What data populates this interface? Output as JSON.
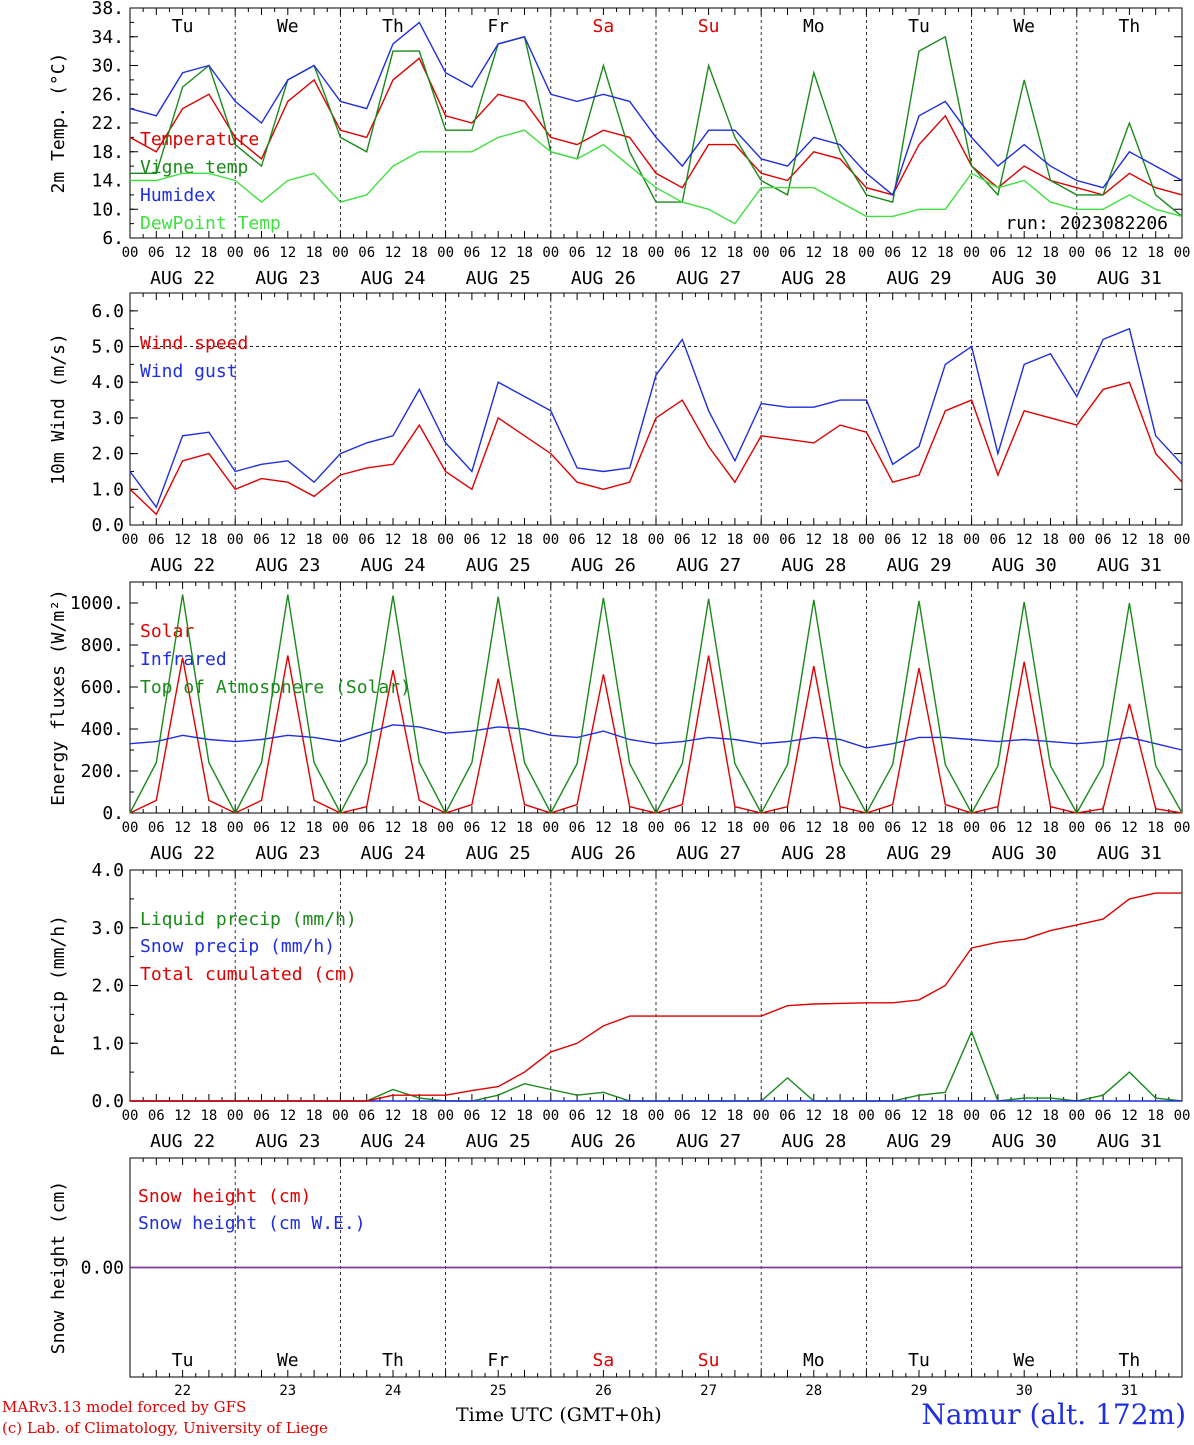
{
  "meta": {
    "run": "run: 2023082206",
    "model_line1": "MARv3.13 model forced by GFS",
    "model_line2": "(c) Lab. of Climatology, University of Liege",
    "time_axis": "Time UTC (GMT+0h)",
    "location": "Namur (alt. 172m)"
  },
  "days": {
    "weekday": [
      "Tu",
      "We",
      "Th",
      "Fr",
      "Sa",
      "Su",
      "Mo",
      "Tu",
      "We",
      "Th"
    ],
    "weekend_flags": [
      false,
      false,
      false,
      false,
      true,
      true,
      false,
      false,
      false,
      false
    ],
    "dates": [
      "AUG 22",
      "AUG 23",
      "AUG 24",
      "AUG 25",
      "AUG 26",
      "AUG 27",
      "AUG 28",
      "AUG 29",
      "AUG 30",
      "AUG 31"
    ],
    "day_numbers": [
      "22",
      "23",
      "24",
      "25",
      "26",
      "27",
      "28",
      "29",
      "30",
      "31"
    ],
    "hour_ticks": [
      "00",
      "06",
      "12",
      "18"
    ],
    "end_tick": "00"
  },
  "colors": {
    "red": "#e00000",
    "green": "#1a8a1a",
    "blue": "#1f2ee0",
    "lime": "#40e040",
    "purple": "#7a3aa0",
    "weekend": "#e00000"
  },
  "chart_data": [
    {
      "type": "line",
      "ylabel": "2m Temp. (°C)",
      "ylim": [
        6,
        38
      ],
      "yticks": [
        "38.",
        "34.",
        "30.",
        "26.",
        "22.",
        "18.",
        "14.",
        "10.",
        "6."
      ],
      "yvals": [
        38,
        34,
        30,
        26,
        22,
        18,
        14,
        10,
        6
      ],
      "x_hours_step": 6,
      "series": [
        {
          "name": "Temperature",
          "color": "red",
          "values": [
            20,
            18,
            24,
            26,
            20,
            17,
            25,
            28,
            21,
            20,
            28,
            31,
            23,
            22,
            26,
            25,
            20,
            19,
            21,
            20,
            15,
            13,
            19,
            19,
            15,
            14,
            18,
            17,
            13,
            12,
            19,
            23,
            16,
            13,
            16,
            14,
            13,
            12,
            15,
            13,
            12
          ]
        },
        {
          "name": "Vigne temp",
          "color": "green",
          "values": [
            15,
            15,
            27,
            30,
            19,
            16,
            28,
            30,
            20,
            18,
            32,
            32,
            21,
            21,
            33,
            34,
            18,
            17,
            30,
            18,
            11,
            11,
            30,
            20,
            14,
            12,
            29,
            18,
            12,
            11,
            32,
            34,
            16,
            12,
            28,
            14,
            12,
            12,
            22,
            12,
            9
          ]
        },
        {
          "name": "Humidex",
          "color": "blue",
          "values": [
            24,
            23,
            29,
            30,
            25,
            22,
            28,
            30,
            25,
            24,
            33,
            36,
            29,
            27,
            33,
            34,
            26,
            25,
            26,
            25,
            20,
            16,
            21,
            21,
            17,
            16,
            20,
            19,
            15,
            12,
            23,
            25,
            20,
            16,
            19,
            16,
            14,
            13,
            18,
            16,
            14
          ]
        },
        {
          "name": "DewPoint Temp",
          "color": "lime",
          "values": [
            14,
            14,
            15,
            15,
            14,
            11,
            14,
            15,
            11,
            12,
            16,
            18,
            18,
            18,
            20,
            21,
            18,
            17,
            19,
            16,
            13,
            11,
            10,
            8,
            13,
            13,
            13,
            11,
            9,
            9,
            10,
            10,
            15,
            13,
            14,
            11,
            10,
            10,
            12,
            10,
            9
          ]
        }
      ]
    },
    {
      "type": "line",
      "ylabel": "10m Wind (m/s)",
      "ylim": [
        0,
        6.5
      ],
      "yticks": [
        "6.0",
        "5.0",
        "4.0",
        "3.0",
        "2.0",
        "1.0",
        "0.0"
      ],
      "yvals": [
        6,
        5,
        4,
        3,
        2,
        1,
        0
      ],
      "ref_line": 5,
      "x_hours_step": 6,
      "series": [
        {
          "name": "Wind speed",
          "color": "red",
          "values": [
            1.0,
            0.3,
            1.8,
            2.0,
            1.0,
            1.3,
            1.2,
            0.8,
            1.4,
            1.6,
            1.7,
            2.8,
            1.5,
            1.0,
            3.0,
            2.5,
            2.0,
            1.2,
            1.0,
            1.2,
            3.0,
            3.5,
            2.2,
            1.2,
            2.5,
            2.4,
            2.3,
            2.8,
            2.6,
            1.2,
            1.4,
            3.2,
            3.5,
            1.4,
            3.2,
            3.0,
            2.8,
            3.8,
            4.0,
            2.0,
            1.2
          ]
        },
        {
          "name": "Wind gust",
          "color": "blue",
          "values": [
            1.5,
            0.5,
            2.5,
            2.6,
            1.5,
            1.7,
            1.8,
            1.2,
            2.0,
            2.3,
            2.5,
            3.8,
            2.3,
            1.5,
            4.0,
            3.6,
            3.2,
            1.6,
            1.5,
            1.6,
            4.2,
            5.2,
            3.2,
            1.8,
            3.4,
            3.3,
            3.3,
            3.5,
            3.5,
            1.7,
            2.2,
            4.5,
            5.0,
            2.0,
            4.5,
            4.8,
            3.6,
            5.2,
            5.5,
            2.5,
            1.7
          ]
        }
      ]
    },
    {
      "type": "line",
      "ylabel": "Energy fluxes (W/m²)",
      "ylim": [
        0,
        1100
      ],
      "yticks": [
        "1000.",
        "800.",
        "600.",
        "400.",
        "200.",
        "0."
      ],
      "yvals": [
        1000,
        800,
        600,
        400,
        200,
        0
      ],
      "x_hours_step": 6,
      "series": [
        {
          "name": "Solar",
          "color": "red",
          "values": [
            0,
            60,
            740,
            60,
            0,
            60,
            750,
            60,
            0,
            30,
            680,
            60,
            0,
            40,
            640,
            40,
            0,
            40,
            660,
            30,
            0,
            40,
            750,
            30,
            0,
            30,
            700,
            30,
            0,
            40,
            690,
            40,
            0,
            30,
            720,
            30,
            0,
            20,
            520,
            20,
            0
          ]
        },
        {
          "name": "Infrared",
          "color": "blue",
          "values": [
            330,
            340,
            370,
            350,
            340,
            350,
            370,
            360,
            340,
            380,
            420,
            410,
            380,
            390,
            410,
            400,
            370,
            360,
            390,
            350,
            330,
            340,
            360,
            350,
            330,
            340,
            360,
            350,
            310,
            330,
            360,
            360,
            350,
            340,
            350,
            340,
            330,
            340,
            360,
            330,
            300
          ]
        },
        {
          "name": "Top of Atmosphere (Solar)",
          "color": "green",
          "values": [
            0,
            240,
            1040,
            240,
            0,
            240,
            1040,
            240,
            0,
            240,
            1035,
            240,
            0,
            240,
            1030,
            240,
            0,
            235,
            1025,
            235,
            0,
            235,
            1020,
            235,
            0,
            230,
            1015,
            230,
            0,
            230,
            1010,
            230,
            0,
            225,
            1005,
            225,
            0,
            225,
            1000,
            225,
            0
          ]
        }
      ]
    },
    {
      "type": "line",
      "ylabel": "Precip (mm/h)",
      "ylim": [
        0,
        4.0
      ],
      "yticks": [
        "4.0",
        "3.0",
        "2.0",
        "1.0",
        "0.0"
      ],
      "yvals": [
        4,
        3,
        2,
        1,
        0
      ],
      "x_hours_step": 6,
      "series": [
        {
          "name": "Liquid precip (mm/h)",
          "color": "green",
          "values": [
            0,
            0,
            0,
            0,
            0,
            0,
            0,
            0,
            0,
            0,
            0.2,
            0.05,
            0,
            0,
            0.1,
            0.3,
            0.2,
            0.1,
            0.15,
            0,
            0,
            0,
            0,
            0,
            0,
            0.4,
            0,
            0,
            0,
            0,
            0.1,
            0.15,
            1.2,
            0,
            0.05,
            0.05,
            0,
            0.1,
            0.5,
            0.05,
            0
          ]
        },
        {
          "name": "Snow precip (mm/h)",
          "color": "blue",
          "values": [
            0,
            0,
            0,
            0,
            0,
            0,
            0,
            0,
            0,
            0,
            0,
            0,
            0,
            0,
            0,
            0,
            0,
            0,
            0,
            0,
            0,
            0,
            0,
            0,
            0,
            0,
            0,
            0,
            0,
            0,
            0,
            0,
            0,
            0,
            0,
            0,
            0,
            0,
            0,
            0,
            0
          ]
        },
        {
          "name": "Total cumulated (cm)",
          "color": "red",
          "values": [
            0,
            0,
            0,
            0,
            0,
            0,
            0,
            0,
            0,
            0,
            0.1,
            0.1,
            0.1,
            0.18,
            0.25,
            0.5,
            0.85,
            1.0,
            1.3,
            1.47,
            1.47,
            1.47,
            1.47,
            1.47,
            1.47,
            1.65,
            1.68,
            1.69,
            1.7,
            1.7,
            1.75,
            2.0,
            2.65,
            2.75,
            2.8,
            2.95,
            3.05,
            3.15,
            3.5,
            3.6,
            3.6
          ]
        }
      ]
    },
    {
      "type": "line",
      "ylabel": "Snow height (cm)",
      "ylim": [
        -1,
        1
      ],
      "yticks": [
        "0.00"
      ],
      "yvals": [
        0
      ],
      "x_hours_step": 6,
      "series": [
        {
          "name": "Snow height (cm)",
          "color": "red",
          "values": [
            0,
            0
          ]
        },
        {
          "name": "Snow height (cm W.E.)",
          "color": "blue",
          "values": [
            0,
            0
          ]
        }
      ],
      "zero_line_color": "purple"
    }
  ]
}
